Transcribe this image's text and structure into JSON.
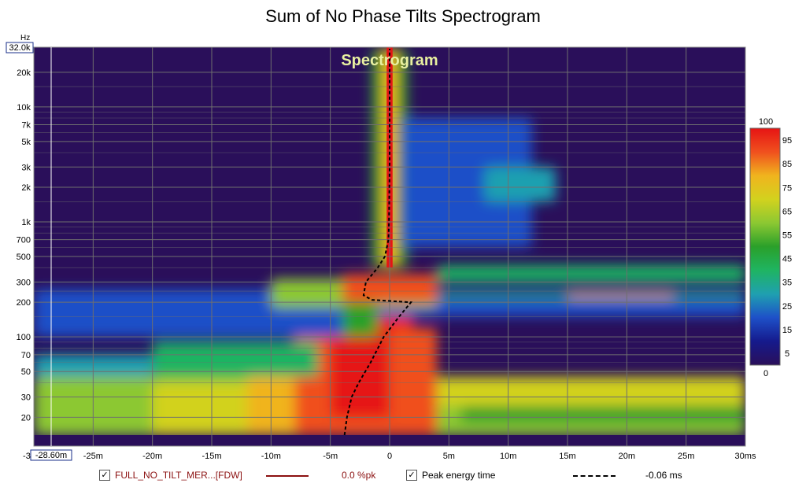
{
  "window": {
    "title": "Sum of No Phase Tilts Spectrogram"
  },
  "colors": {
    "background": "#ffffff",
    "plot_bg": "#2a0f5a",
    "grid": "#6f6f6f",
    "peak_line": "#000000",
    "trace_red": "#8b1010"
  },
  "chart_data": {
    "type": "heatmap",
    "title": "Sum of No Phase Tilts Spectrogram",
    "inner_label": "Spectrogram",
    "y_unit": "Hz",
    "x_unit": "ms",
    "xlim": [
      -30,
      30
    ],
    "ylim": [
      10,
      32000
    ],
    "y_scale": "log",
    "y_top_readout": "32.0k",
    "x_cursor_readout": "-28.60m",
    "x_ticks": [
      {
        "v": -30,
        "label": "-30"
      },
      {
        "v": -25,
        "label": "-25m"
      },
      {
        "v": -20,
        "label": "-20m"
      },
      {
        "v": -15,
        "label": "-15m"
      },
      {
        "v": -10,
        "label": "-10m"
      },
      {
        "v": -5,
        "label": "-5m"
      },
      {
        "v": 0,
        "label": "0"
      },
      {
        "v": 5,
        "label": "5m"
      },
      {
        "v": 10,
        "label": "10m"
      },
      {
        "v": 15,
        "label": "15m"
      },
      {
        "v": 20,
        "label": "20m"
      },
      {
        "v": 25,
        "label": "25m"
      },
      {
        "v": 30,
        "label": "30ms"
      }
    ],
    "y_ticks": [
      {
        "v": 20,
        "label": "20"
      },
      {
        "v": 30,
        "label": "30"
      },
      {
        "v": 50,
        "label": "50"
      },
      {
        "v": 70,
        "label": "70"
      },
      {
        "v": 100,
        "label": "100"
      },
      {
        "v": 200,
        "label": "200"
      },
      {
        "v": 300,
        "label": "300"
      },
      {
        "v": 500,
        "label": "500"
      },
      {
        "v": 700,
        "label": "700"
      },
      {
        "v": 1000,
        "label": "1k"
      },
      {
        "v": 2000,
        "label": "2k"
      },
      {
        "v": 3000,
        "label": "3k"
      },
      {
        "v": 5000,
        "label": "5k"
      },
      {
        "v": 7000,
        "label": "7k"
      },
      {
        "v": 10000,
        "label": "10k"
      },
      {
        "v": 20000,
        "label": "20k"
      }
    ],
    "colorbar": {
      "min": 0,
      "max": 100,
      "ticks": [
        {
          "v": 5,
          "label": "5"
        },
        {
          "v": 15,
          "label": "15"
        },
        {
          "v": 25,
          "label": "25"
        },
        {
          "v": 35,
          "label": "35"
        },
        {
          "v": 45,
          "label": "45"
        },
        {
          "v": 55,
          "label": "55"
        },
        {
          "v": 65,
          "label": "65"
        },
        {
          "v": 75,
          "label": "75"
        },
        {
          "v": 85,
          "label": "85"
        },
        {
          "v": 95,
          "label": "95"
        }
      ],
      "max_label": "100",
      "min_label": "0",
      "stops": [
        {
          "v": 0,
          "c": "#2a0f5a"
        },
        {
          "v": 10,
          "c": "#151a8c"
        },
        {
          "v": 20,
          "c": "#1e50c8"
        },
        {
          "v": 30,
          "c": "#1fa0b0"
        },
        {
          "v": 40,
          "c": "#1fb462"
        },
        {
          "v": 50,
          "c": "#2aa02a"
        },
        {
          "v": 60,
          "c": "#8cc832"
        },
        {
          "v": 70,
          "c": "#d2d21e"
        },
        {
          "v": 80,
          "c": "#f0b41e"
        },
        {
          "v": 90,
          "c": "#f0501e"
        },
        {
          "v": 100,
          "c": "#e61414"
        }
      ]
    },
    "peak_energy_time": [
      {
        "f": 14,
        "t": -3.8
      },
      {
        "f": 20,
        "t": -3.6
      },
      {
        "f": 30,
        "t": -3.2
      },
      {
        "f": 40,
        "t": -2.6
      },
      {
        "f": 60,
        "t": -1.6
      },
      {
        "f": 100,
        "t": -0.5
      },
      {
        "f": 150,
        "t": 0.8
      },
      {
        "f": 200,
        "t": 1.8
      },
      {
        "f": 210,
        "t": -1.5
      },
      {
        "f": 230,
        "t": -2.2
      },
      {
        "f": 300,
        "t": -2.0
      },
      {
        "f": 400,
        "t": -1.0
      },
      {
        "f": 500,
        "t": -0.4
      },
      {
        "f": 700,
        "t": -0.1
      },
      {
        "f": 1000,
        "t": -0.05
      },
      {
        "f": 3000,
        "t": 0.0
      },
      {
        "f": 10000,
        "t": 0.0
      },
      {
        "f": 32000,
        "t": 0.0
      }
    ]
  },
  "legend": {
    "trace_name": "FULL_NO_TILT_MER...[FDW]",
    "trace_value": "0.0 %pk",
    "peak_label": "Peak energy time",
    "peak_value": "-0.06 ms",
    "trace_checked": "✓",
    "peak_checked": "✓"
  }
}
